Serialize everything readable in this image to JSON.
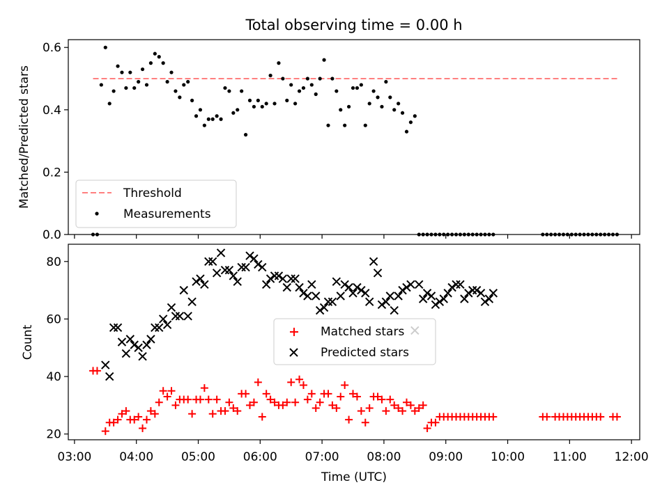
{
  "figure": {
    "title": "Total observing time = 0.00 h"
  },
  "chart_data": [
    {
      "type": "scatter",
      "ylabel": "Matched/Predicted stars",
      "xlabel": "",
      "xlim": [
        "02:54",
        "12:08"
      ],
      "ylim": [
        0,
        0.625
      ],
      "yticks": [
        0.0,
        0.2,
        0.4,
        0.6
      ],
      "ytick_labels": [
        "0.0",
        "0.2",
        "0.4",
        "0.6"
      ],
      "grid": false,
      "legend_position": "lower-left",
      "threshold": {
        "name": "Threshold",
        "value": 0.5,
        "x_range": [
          "03:18",
          "11:48"
        ],
        "color": "#ff7f7f",
        "style": "dashed"
      },
      "series": [
        {
          "name": "Measurements",
          "color": "#000000",
          "marker": "dot",
          "x": [
            "03:18",
            "03:22",
            "03:26",
            "03:30",
            "03:34",
            "03:38",
            "03:42",
            "03:46",
            "03:50",
            "03:54",
            "03:58",
            "04:02",
            "04:06",
            "04:10",
            "04:14",
            "04:18",
            "04:22",
            "04:26",
            "04:30",
            "04:34",
            "04:38",
            "04:42",
            "04:46",
            "04:50",
            "04:54",
            "04:58",
            "05:02",
            "05:06",
            "05:10",
            "05:14",
            "05:18",
            "05:22",
            "05:26",
            "05:30",
            "05:34",
            "05:38",
            "05:42",
            "05:46",
            "05:50",
            "05:54",
            "05:58",
            "06:02",
            "06:06",
            "06:10",
            "06:14",
            "06:18",
            "06:22",
            "06:26",
            "06:30",
            "06:34",
            "06:38",
            "06:42",
            "06:46",
            "06:50",
            "06:54",
            "06:58",
            "07:02",
            "07:06",
            "07:10",
            "07:14",
            "07:18",
            "07:22",
            "07:26",
            "07:30",
            "07:34",
            "07:38",
            "07:42",
            "07:46",
            "07:50",
            "07:54",
            "07:58",
            "08:02",
            "08:06",
            "08:10",
            "08:14",
            "08:18",
            "08:22",
            "08:26",
            "08:30",
            "08:34",
            "08:38",
            "08:42",
            "08:46",
            "08:50",
            "08:54",
            "08:58",
            "09:02",
            "09:06",
            "09:10",
            "09:14",
            "09:18",
            "09:22",
            "09:26",
            "09:30",
            "09:34",
            "09:38",
            "09:42",
            "09:46",
            "10:34",
            "10:38",
            "10:42",
            "10:46",
            "10:50",
            "10:54",
            "10:58",
            "11:02",
            "11:06",
            "11:10",
            "11:14",
            "11:18",
            "11:22",
            "11:26",
            "11:30",
            "11:34",
            "11:38",
            "11:42",
            "11:46"
          ],
          "y": [
            0.0,
            0.0,
            0.48,
            0.6,
            0.42,
            0.46,
            0.54,
            0.52,
            0.47,
            0.52,
            0.47,
            0.49,
            0.53,
            0.48,
            0.55,
            0.58,
            0.57,
            0.55,
            0.49,
            0.52,
            0.46,
            0.44,
            0.48,
            0.49,
            0.43,
            0.38,
            0.4,
            0.35,
            0.37,
            0.37,
            0.38,
            0.37,
            0.47,
            0.46,
            0.39,
            0.4,
            0.46,
            0.32,
            0.43,
            0.41,
            0.43,
            0.41,
            0.42,
            0.51,
            0.42,
            0.55,
            0.5,
            0.43,
            0.48,
            0.42,
            0.46,
            0.47,
            0.5,
            0.48,
            0.45,
            0.5,
            0.56,
            0.35,
            0.5,
            0.46,
            0.4,
            0.35,
            0.41,
            0.47,
            0.47,
            0.48,
            0.35,
            0.42,
            0.46,
            0.44,
            0.41,
            0.49,
            0.44,
            0.4,
            0.42,
            0.39,
            0.33,
            0.36,
            0.38,
            0.0,
            0.0,
            0.0,
            0.0,
            0.0,
            0.0,
            0.0,
            0.0,
            0.0,
            0.0,
            0.0,
            0.0,
            0.0,
            0.0,
            0.0,
            0.0,
            0.0,
            0.0,
            0.0,
            0.0,
            0.0,
            0.0,
            0.0,
            0.0,
            0.0,
            0.0,
            0.0,
            0.0,
            0.0,
            0.0,
            0.0,
            0.0,
            0.0,
            0.0,
            0.0,
            0.0,
            0.0,
            0.0
          ]
        }
      ]
    },
    {
      "type": "scatter",
      "ylabel": "Count",
      "xlabel": "Time (UTC)",
      "xlim": [
        "02:54",
        "12:08"
      ],
      "ylim": [
        18,
        86
      ],
      "yticks": [
        20,
        40,
        60,
        80
      ],
      "ytick_labels": [
        "20",
        "40",
        "60",
        "80"
      ],
      "xticks": [
        "03:00",
        "04:00",
        "05:00",
        "06:00",
        "07:00",
        "08:00",
        "09:00",
        "10:00",
        "11:00",
        "12:00"
      ],
      "xtick_labels": [
        "03:00",
        "04:00",
        "05:00",
        "06:00",
        "07:00",
        "08:00",
        "09:00",
        "10:00",
        "11:00",
        "12:00"
      ],
      "grid": false,
      "legend_position": "center",
      "series": [
        {
          "name": "Matched stars",
          "color": "#ff0000",
          "marker": "plus",
          "x": [
            "03:18",
            "03:22",
            "03:30",
            "03:34",
            "03:38",
            "03:42",
            "03:46",
            "03:50",
            "03:54",
            "03:58",
            "04:02",
            "04:06",
            "04:10",
            "04:14",
            "04:18",
            "04:22",
            "04:26",
            "04:30",
            "04:34",
            "04:38",
            "04:42",
            "04:46",
            "04:50",
            "04:54",
            "04:58",
            "05:02",
            "05:06",
            "05:10",
            "05:14",
            "05:18",
            "05:22",
            "05:26",
            "05:30",
            "05:34",
            "05:38",
            "05:42",
            "05:46",
            "05:50",
            "05:54",
            "05:58",
            "06:02",
            "06:06",
            "06:10",
            "06:14",
            "06:18",
            "06:22",
            "06:26",
            "06:30",
            "06:34",
            "06:38",
            "06:42",
            "06:46",
            "06:50",
            "06:54",
            "06:58",
            "07:02",
            "07:06",
            "07:10",
            "07:14",
            "07:18",
            "07:22",
            "07:26",
            "07:30",
            "07:34",
            "07:38",
            "07:42",
            "07:46",
            "07:50",
            "07:54",
            "07:58",
            "08:02",
            "08:06",
            "08:10",
            "08:14",
            "08:18",
            "08:22",
            "08:26",
            "08:30",
            "08:34",
            "08:38",
            "08:42",
            "08:46",
            "08:50",
            "08:54",
            "08:58",
            "09:02",
            "09:06",
            "09:10",
            "09:14",
            "09:18",
            "09:22",
            "09:26",
            "09:30",
            "09:34",
            "09:38",
            "09:42",
            "09:46",
            "10:34",
            "10:38",
            "10:46",
            "10:50",
            "10:54",
            "10:58",
            "11:02",
            "11:06",
            "11:10",
            "11:14",
            "11:18",
            "11:22",
            "11:26",
            "11:30",
            "11:42",
            "11:46"
          ],
          "y": [
            42,
            42,
            21,
            24,
            24,
            25,
            27,
            28,
            25,
            25,
            26,
            22,
            25,
            28,
            27,
            31,
            35,
            33,
            35,
            30,
            32,
            32,
            32,
            27,
            32,
            32,
            36,
            32,
            27,
            32,
            28,
            28,
            31,
            29,
            28,
            34,
            34,
            30,
            31,
            38,
            26,
            34,
            32,
            31,
            30,
            30,
            31,
            38,
            31,
            39,
            37,
            32,
            34,
            29,
            31,
            34,
            34,
            30,
            29,
            33,
            37,
            25,
            34,
            33,
            28,
            24,
            29,
            33,
            33,
            32,
            28,
            32,
            30,
            29,
            28,
            31,
            30,
            28,
            29,
            30,
            22,
            24,
            24,
            26,
            26,
            26,
            26,
            26,
            26,
            26,
            26,
            26,
            26,
            26,
            26,
            26,
            26,
            26,
            26,
            26,
            26,
            26,
            26,
            26,
            26,
            26,
            26,
            26,
            26,
            26,
            26,
            26,
            26
          ],
          "x_note": ""
        },
        {
          "name": "Predicted stars",
          "color": "#000000",
          "marker": "x",
          "x": [
            "03:30",
            "03:34",
            "03:38",
            "03:42",
            "03:46",
            "03:50",
            "03:54",
            "03:58",
            "04:02",
            "04:06",
            "04:10",
            "04:14",
            "04:18",
            "04:22",
            "04:26",
            "04:30",
            "04:34",
            "04:38",
            "04:42",
            "04:46",
            "04:50",
            "04:54",
            "04:58",
            "05:02",
            "05:06",
            "05:10",
            "05:14",
            "05:18",
            "05:22",
            "05:26",
            "05:30",
            "05:34",
            "05:38",
            "05:42",
            "05:46",
            "05:50",
            "05:54",
            "05:58",
            "06:02",
            "06:06",
            "06:10",
            "06:14",
            "06:18",
            "06:22",
            "06:26",
            "06:30",
            "06:34",
            "06:38",
            "06:42",
            "06:46",
            "06:50",
            "06:54",
            "06:58",
            "07:02",
            "07:06",
            "07:10",
            "07:14",
            "07:18",
            "07:22",
            "07:26",
            "07:30",
            "07:34",
            "07:38",
            "07:42",
            "07:46",
            "07:50",
            "07:54",
            "07:58",
            "08:02",
            "08:06",
            "08:10",
            "08:14",
            "08:18",
            "08:22",
            "08:26",
            "08:30",
            "08:34",
            "08:38",
            "08:42",
            "08:46",
            "08:50",
            "08:54",
            "08:58",
            "09:02",
            "09:06",
            "09:10",
            "09:14",
            "09:18",
            "09:22",
            "09:26",
            "09:30",
            "09:34",
            "09:38",
            "09:42",
            "09:46"
          ],
          "y": [
            44,
            40,
            57,
            57,
            52,
            48,
            53,
            51,
            50,
            47,
            51,
            53,
            57,
            57,
            60,
            58,
            64,
            61,
            61,
            70,
            61,
            66,
            73,
            74,
            72,
            80,
            80,
            76,
            83,
            77,
            77,
            75,
            73,
            78,
            78,
            82,
            81,
            79,
            78,
            72,
            74,
            75,
            75,
            74,
            71,
            74,
            74,
            71,
            69,
            68,
            72,
            68,
            63,
            64,
            66,
            66,
            73,
            68,
            72,
            71,
            69,
            71,
            70,
            69,
            66,
            80,
            76,
            65,
            66,
            68,
            63,
            68,
            70,
            71,
            72,
            56,
            72,
            67,
            69,
            68,
            65,
            66,
            67,
            69,
            71,
            72,
            72,
            67,
            69,
            70,
            70,
            69,
            66,
            67,
            69
          ],
          "x_note": ""
        }
      ]
    }
  ]
}
